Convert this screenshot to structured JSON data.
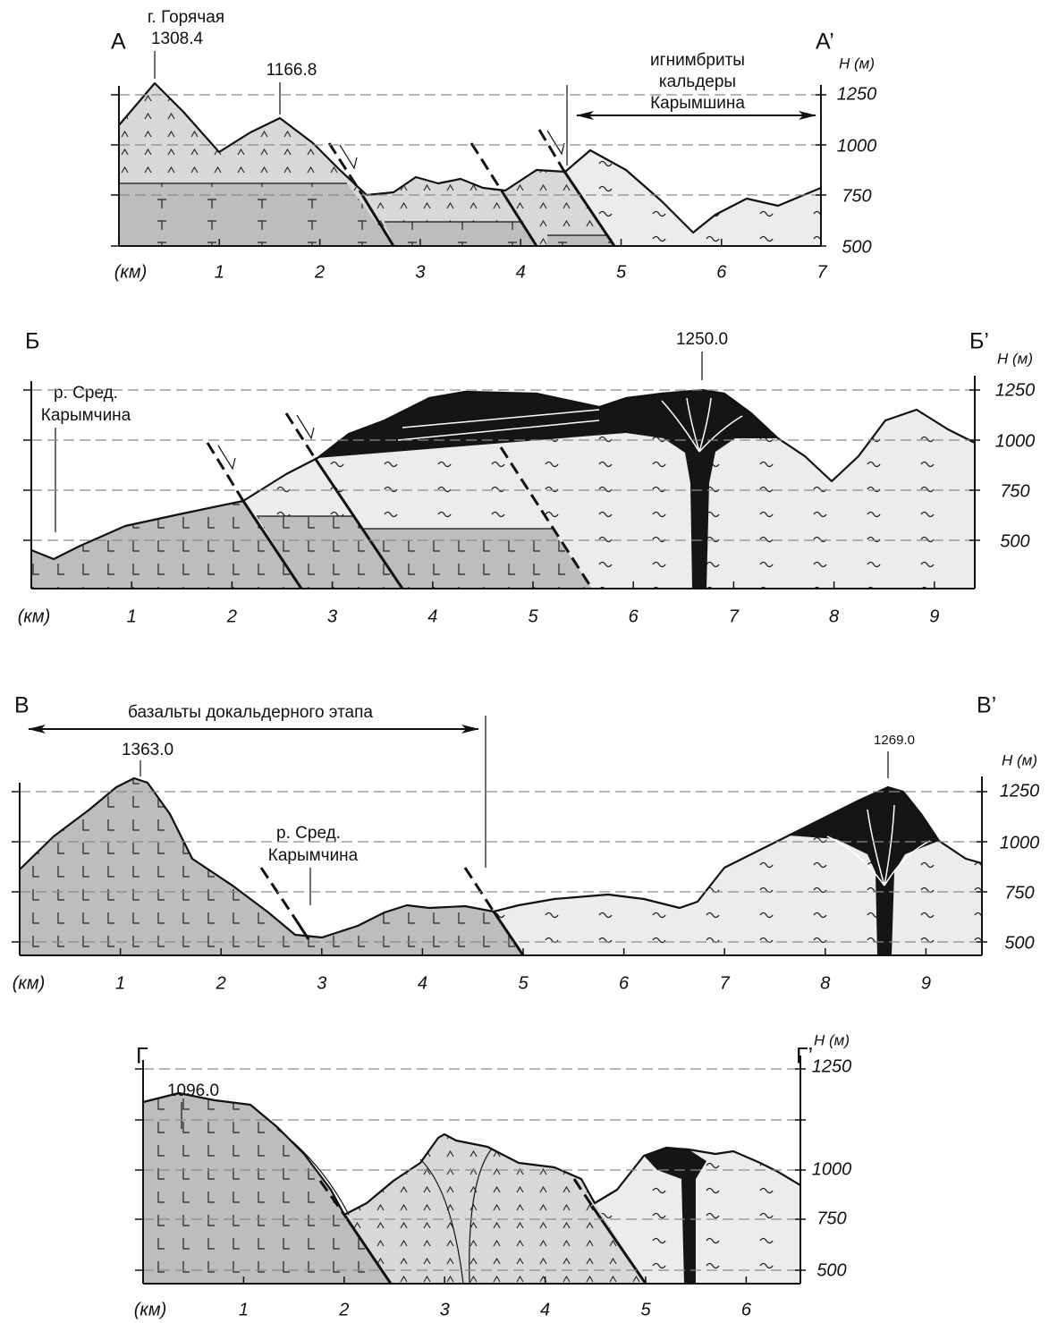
{
  "sections": [
    {
      "label_left": "А",
      "label_right": "А’",
      "axis_title": "H (м)",
      "elevations": [
        "1250",
        "1000",
        "750",
        "500"
      ],
      "distance_unit": "(км)",
      "distances": [
        "1",
        "2",
        "3",
        "4",
        "5",
        "6",
        "7"
      ],
      "peaks": [
        {
          "name": "г. Горячая",
          "height": "1308.4"
        },
        {
          "height": "1166.8"
        }
      ],
      "note": [
        "игнимбриты",
        "кальдеры",
        "Карымшина"
      ]
    },
    {
      "label_left": "Б",
      "label_right": "Б’",
      "axis_title": "H (м)",
      "elevations": [
        "1250",
        "1000",
        "750",
        "500"
      ],
      "distance_unit": "(км)",
      "distances": [
        "1",
        "2",
        "3",
        "4",
        "5",
        "6",
        "7",
        "8",
        "9"
      ],
      "peaks": [
        {
          "height": "1250.0"
        }
      ],
      "river": [
        "р. Сред.",
        "Карымчина"
      ]
    },
    {
      "label_left": "В",
      "label_right": "В’",
      "axis_title": "H (м)",
      "elevations": [
        "1250",
        "1000",
        "750",
        "500"
      ],
      "distance_unit": "(км)",
      "distances": [
        "1",
        "2",
        "3",
        "4",
        "5",
        "6",
        "7",
        "8",
        "9"
      ],
      "peaks": [
        {
          "height": "1363.0"
        },
        {
          "height": "1269.0"
        }
      ],
      "river": [
        "р. Сред.",
        "Карымчина"
      ],
      "note": [
        "базальты докальдерного этапа"
      ]
    },
    {
      "label_left": "Г",
      "label_right": "Г’",
      "axis_title": "H (м)",
      "elevations": [
        "1250",
        "1000",
        "750",
        "500"
      ],
      "distance_unit": "(км)",
      "distances": [
        "1",
        "2",
        "3",
        "4",
        "5",
        "6"
      ],
      "peaks": [
        {
          "height": "1096.0"
        }
      ]
    }
  ]
}
